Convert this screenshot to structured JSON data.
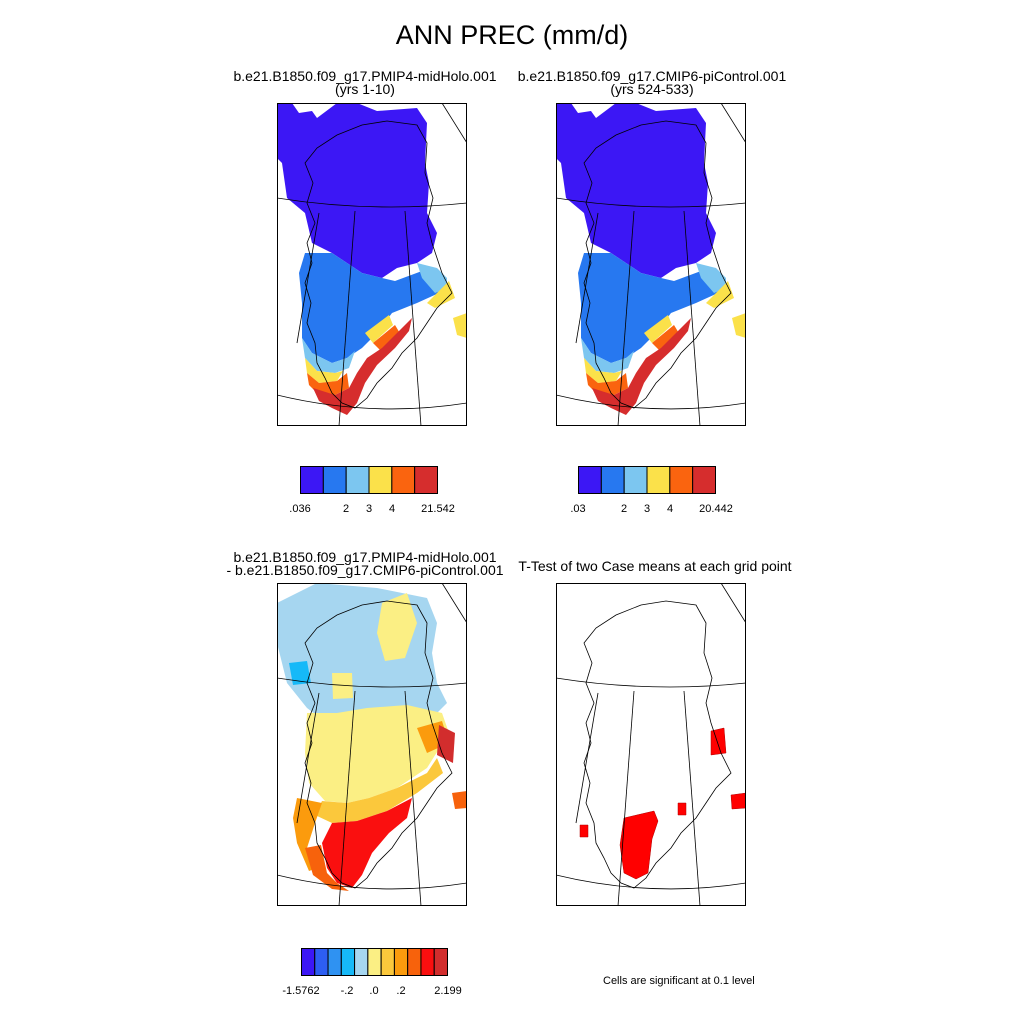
{
  "title": "ANN PREC (mm/d)",
  "panels": [
    {
      "title_line1": "b.e21.B1850.f09_g17.PMIP4-midHolo.001",
      "title_line2": "(yrs 1-10)",
      "colorbar": {
        "colors": [
          "#3c17f5",
          "#2778f0",
          "#7cc6f0",
          "#fbe14a",
          "#fa640f",
          "#d62d2d"
        ],
        "tick_labels": [
          ".036",
          "2",
          "3",
          "4",
          "21.542"
        ]
      }
    },
    {
      "title_line1": "b.e21.B1850.f09_g17.CMIP6-piControl.001",
      "title_line2": "(yrs 524-533)",
      "colorbar": {
        "colors": [
          "#3c17f5",
          "#2778f0",
          "#7cc6f0",
          "#fbe14a",
          "#fa640f",
          "#d62d2d"
        ],
        "tick_labels": [
          ".03",
          "2",
          "3",
          "4",
          "20.442"
        ]
      }
    },
    {
      "title_line1": "b.e21.B1850.f09_g17.PMIP4-midHolo.001",
      "title_line2": "- b.e21.B1850.f09_g17.CMIP6-piControl.001",
      "colorbar": {
        "colors": [
          "#3c17f5",
          "#2d5ef2",
          "#2f92f2",
          "#16b9f8",
          "#a6d6f0",
          "#fbef84",
          "#fbc83c",
          "#fb9b0d",
          "#f7620c",
          "#fa0f0f",
          "#d22d2d"
        ],
        "tick_labels": [
          "-1.5762",
          "-.2",
          ".0",
          ".2",
          "2.199"
        ]
      }
    },
    {
      "title_line1": "T-Test of two Case means at each grid point",
      "title_line2": "",
      "note": "Cells are significant at 0.1 level",
      "significance_color": "#ff0000"
    }
  ]
}
